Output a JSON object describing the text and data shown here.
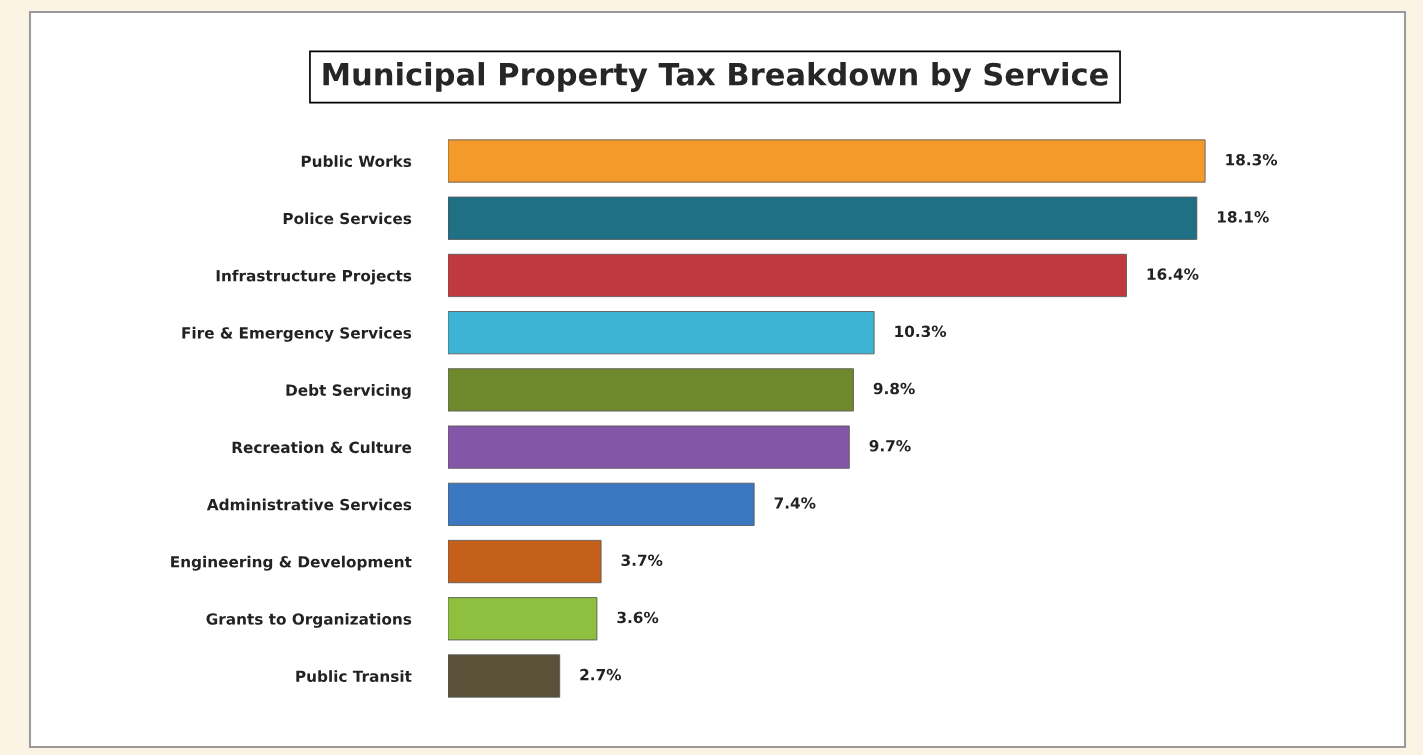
{
  "chart_data": {
    "type": "bar",
    "orientation": "horizontal",
    "title": "Municipal Property Tax Breakdown by Service",
    "categories": [
      "Public Works",
      "Police Services",
      "Infrastructure Projects",
      "Fire & Emergency Services",
      "Debt Servicing",
      "Recreation & Culture",
      "Administrative Services",
      "Engineering & Development",
      "Grants to Organizations",
      "Public Transit"
    ],
    "values": [
      18.3,
      18.1,
      16.4,
      10.3,
      9.8,
      9.7,
      7.4,
      3.7,
      3.6,
      2.7
    ],
    "colors": [
      "#f39a2b",
      "#1f6f85",
      "#c0393f",
      "#3fb3d3",
      "#6e8a2c",
      "#8356a8",
      "#3a78c2",
      "#c4601a",
      "#8fbf3e",
      "#5a5238"
    ],
    "value_labels": [
      "18.3%",
      "18.1%",
      "16.4%",
      "10.3%",
      "9.8%",
      "9.7%",
      "7.4%",
      "3.7%",
      "3.6%",
      "2.7%"
    ],
    "grid": false,
    "legend": false
  }
}
